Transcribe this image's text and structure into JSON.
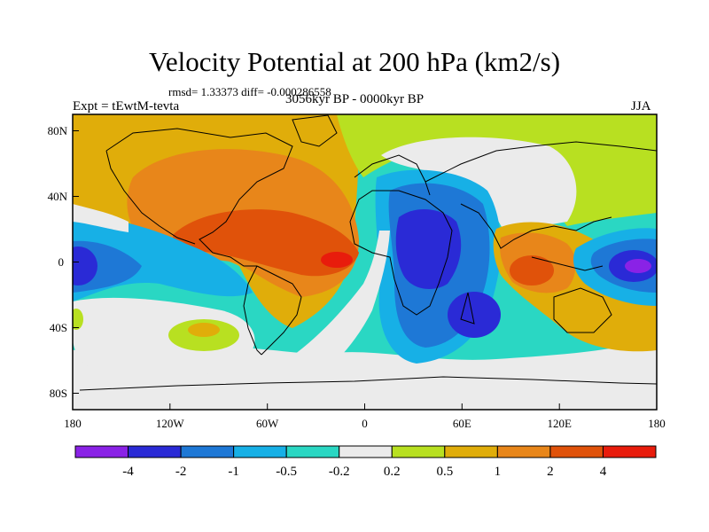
{
  "title": "Velocity Potential at 200 hPa (km2/s)",
  "stats": "rmsd= 1.33373 diff= -0.000286558",
  "experiment": "Expt = tEwtM-tevta",
  "period": "3056kyr BP - 0000kyr BP",
  "season": "JJA",
  "lon_ticks": [
    "180",
    "120W",
    "60W",
    "0",
    "60E",
    "120E",
    "180"
  ],
  "lat_ticks": [
    "80N",
    "40N",
    "0",
    "40S",
    "80S"
  ],
  "colorbar": {
    "labels": [
      "-4",
      "-2",
      "-1",
      "-0.5",
      "-0.2",
      "0.2",
      "0.5",
      "1",
      "2",
      "4"
    ],
    "colors": [
      "#8a22e6",
      "#2a2ad6",
      "#1e78d6",
      "#17b0e6",
      "#2ad7c3",
      "#ebebeb",
      "#b8e021",
      "#e0ad0a",
      "#e8861a",
      "#e0520a",
      "#e81c0c"
    ]
  }
}
